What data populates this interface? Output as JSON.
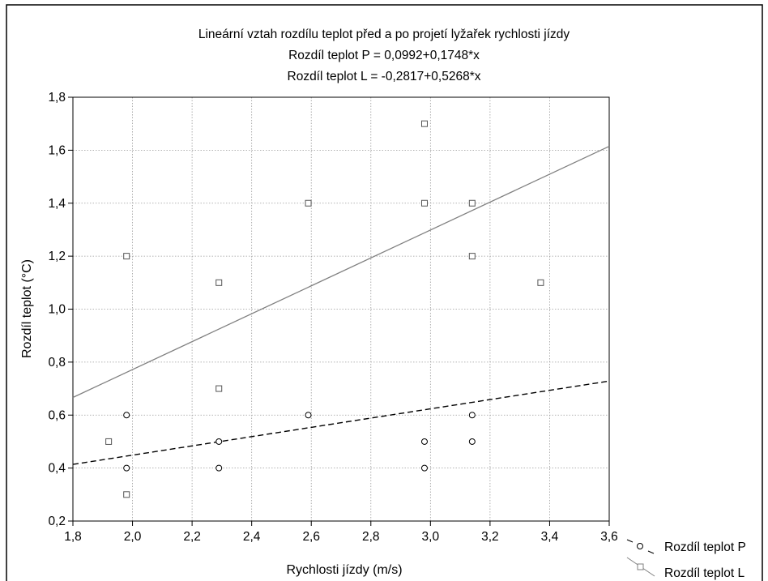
{
  "chart_data": {
    "type": "scatter",
    "title": "Lineární vztah rozdílu teplot před a po projetí lyžařek  rychlosti jízdy",
    "subtitle_lines": [
      "Rozdíl teplot P = 0,0992+0,1748*x",
      "Rozdíl teplot L = -0,2817+0,5268*x"
    ],
    "xlabel": "Rychlosti jízdy (m/s)",
    "ylabel": "Rozdíl teplot (°C)",
    "xlim": [
      1.8,
      3.6
    ],
    "ylim": [
      0.2,
      1.8
    ],
    "x_ticks": [
      "1,8",
      "2,0",
      "2,2",
      "2,4",
      "2,6",
      "2,8",
      "3,0",
      "3,2",
      "3,4",
      "3,6"
    ],
    "y_ticks": [
      "0,2",
      "0,4",
      "0,6",
      "0,8",
      "1,0",
      "1,2",
      "1,4",
      "1,6",
      "1,8"
    ],
    "x_tick_values": [
      1.8,
      2.0,
      2.2,
      2.4,
      2.6,
      2.8,
      3.0,
      3.2,
      3.4,
      3.6
    ],
    "y_tick_values": [
      0.2,
      0.4,
      0.6,
      0.8,
      1.0,
      1.2,
      1.4,
      1.6,
      1.8
    ],
    "grid": true,
    "legend_position": "bottom-right-outside",
    "series": [
      {
        "name": "Rozdíl teplot P",
        "marker": "circle",
        "fit_line_style": "dashed",
        "fit_intercept": 0.0992,
        "fit_slope": 0.1748,
        "color": "#000000",
        "points": [
          [
            1.98,
            0.6
          ],
          [
            1.98,
            0.4
          ],
          [
            2.29,
            0.5
          ],
          [
            2.29,
            0.4
          ],
          [
            2.59,
            0.6
          ],
          [
            2.98,
            0.5
          ],
          [
            2.98,
            0.4
          ],
          [
            3.14,
            0.6
          ],
          [
            3.14,
            0.5
          ]
        ]
      },
      {
        "name": "Rozdíl teplot L",
        "marker": "square",
        "fit_line_style": "solid",
        "fit_intercept": -0.2817,
        "fit_slope": 0.5268,
        "color": "#808080",
        "points": [
          [
            1.98,
            1.2
          ],
          [
            2.29,
            1.1
          ],
          [
            2.29,
            0.7
          ],
          [
            1.92,
            0.5
          ],
          [
            1.98,
            0.3
          ],
          [
            2.59,
            1.4
          ],
          [
            2.98,
            1.7
          ],
          [
            2.98,
            1.4
          ],
          [
            3.14,
            1.4
          ],
          [
            3.14,
            1.2
          ],
          [
            3.37,
            1.1
          ]
        ]
      }
    ]
  }
}
